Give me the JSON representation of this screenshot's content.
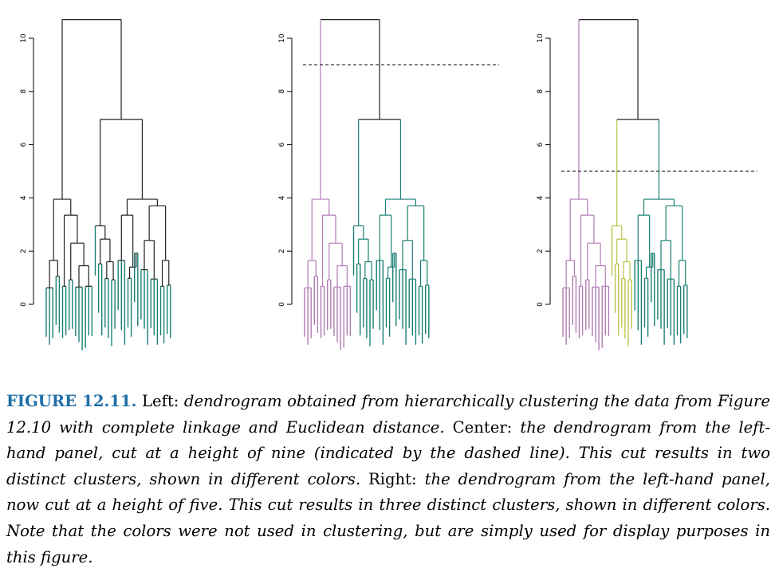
{
  "chart_data": [
    {
      "type": "dendrogram",
      "panel": "left",
      "y_ticks": [
        0,
        2,
        4,
        6,
        8,
        10
      ],
      "cut_height": null,
      "cluster_colors": [
        "#1a7f73"
      ]
    },
    {
      "type": "dendrogram",
      "panel": "center",
      "y_ticks": [
        0,
        2,
        4,
        6,
        8,
        10
      ],
      "cut_height": 9,
      "cluster_colors": [
        "#b07cb4",
        "#1a7f73"
      ]
    },
    {
      "type": "dendrogram",
      "panel": "right",
      "y_ticks": [
        0,
        2,
        4,
        6,
        8,
        10
      ],
      "cut_height": 5,
      "cluster_colors": [
        "#b07cb4",
        "#bcc44a",
        "#1a7f73"
      ]
    }
  ],
  "colors": {
    "accent": "#1f6fa8",
    "teal": "#1a7f73",
    "purple": "#b07cb4",
    "olive": "#bcc44a"
  },
  "caption": {
    "label": "FIGURE 12.11.",
    "left_name": "Left:",
    "left_text": "dendrogram obtained from hierarchically clustering the data from Figure 12.10 with complete linkage and Euclidean distance.",
    "center_name": "Center:",
    "center_text": "the dendrogram from the left-hand panel, cut at a height of nine (indicated by the dashed line). This cut results in two distinct clusters, shown in different colors.",
    "right_name": "Right:",
    "right_text": "the dendrogram from the left-hand panel, now cut at a height of five. This cut results in three distinct clusters, shown in different colors. Note that the colors were not used in clustering, but are simply used for display purposes in this figure."
  }
}
